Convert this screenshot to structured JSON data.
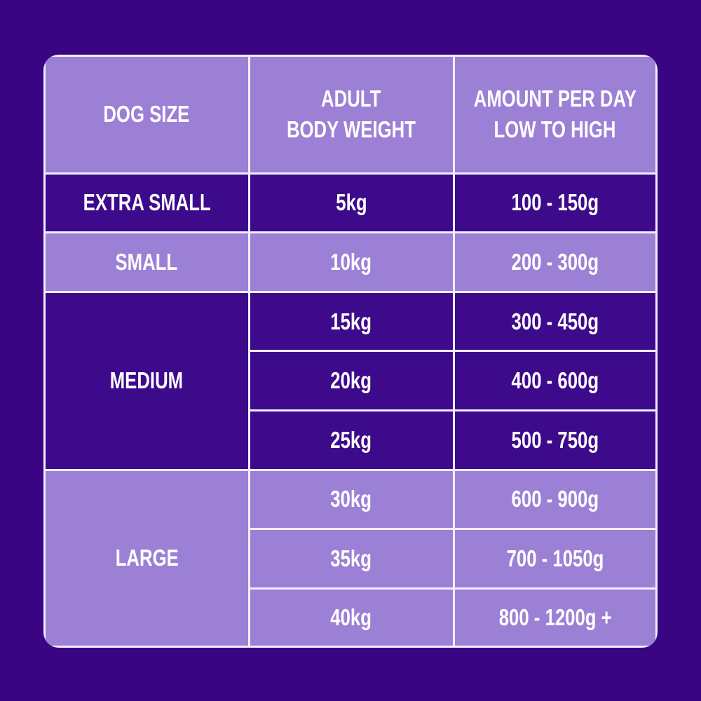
{
  "table": {
    "headers": [
      [
        "DOG SIZE"
      ],
      [
        "ADULT",
        "BODY WEIGHT"
      ],
      [
        "AMOUNT PER DAY",
        "LOW TO HIGH"
      ]
    ],
    "groups": [
      {
        "size": "EXTRA SMALL",
        "rows": [
          {
            "weight": "5kg",
            "amount": "100 - 150g"
          }
        ]
      },
      {
        "size": "SMALL",
        "rows": [
          {
            "weight": "10kg",
            "amount": "200 - 300g"
          }
        ]
      },
      {
        "size": "MEDIUM",
        "rows": [
          {
            "weight": "15kg",
            "amount": "300 - 450g"
          },
          {
            "weight": "20kg",
            "amount": "400 - 600g"
          },
          {
            "weight": "25kg",
            "amount": "500 - 750g"
          }
        ]
      },
      {
        "size": "LARGE",
        "rows": [
          {
            "weight": "30kg",
            "amount": "600 - 900g"
          },
          {
            "weight": "35kg",
            "amount": "700 - 1050g"
          },
          {
            "weight": "40kg",
            "amount": "800 - 1200g +"
          }
        ]
      }
    ]
  }
}
